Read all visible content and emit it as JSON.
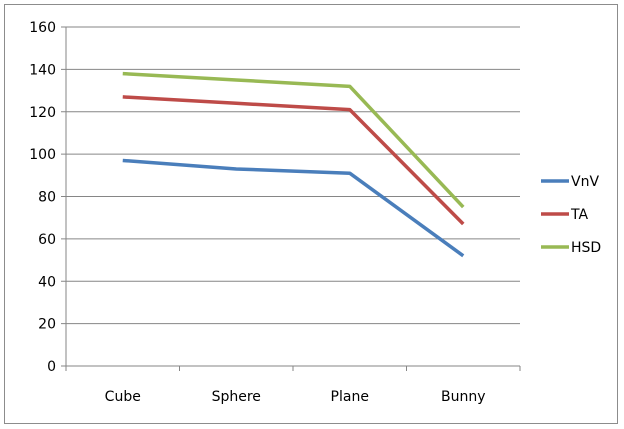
{
  "chart_data": {
    "type": "line",
    "categories": [
      "Cube",
      "Sphere",
      "Plane",
      "Bunny"
    ],
    "series": [
      {
        "name": "VnV",
        "color": "#4a7ebb",
        "values": [
          97,
          93,
          91,
          52
        ]
      },
      {
        "name": "TA",
        "color": "#be4b48",
        "values": [
          127,
          124,
          121,
          67
        ]
      },
      {
        "name": "HSD",
        "color": "#98b954",
        "values": [
          138,
          135,
          132,
          75
        ]
      }
    ],
    "title": "",
    "xlabel": "",
    "ylabel": "",
    "ylim": [
      0,
      160
    ],
    "yticks": [
      0,
      20,
      40,
      60,
      80,
      100,
      120,
      140,
      160
    ],
    "grid": true,
    "legend_position": "right"
  }
}
